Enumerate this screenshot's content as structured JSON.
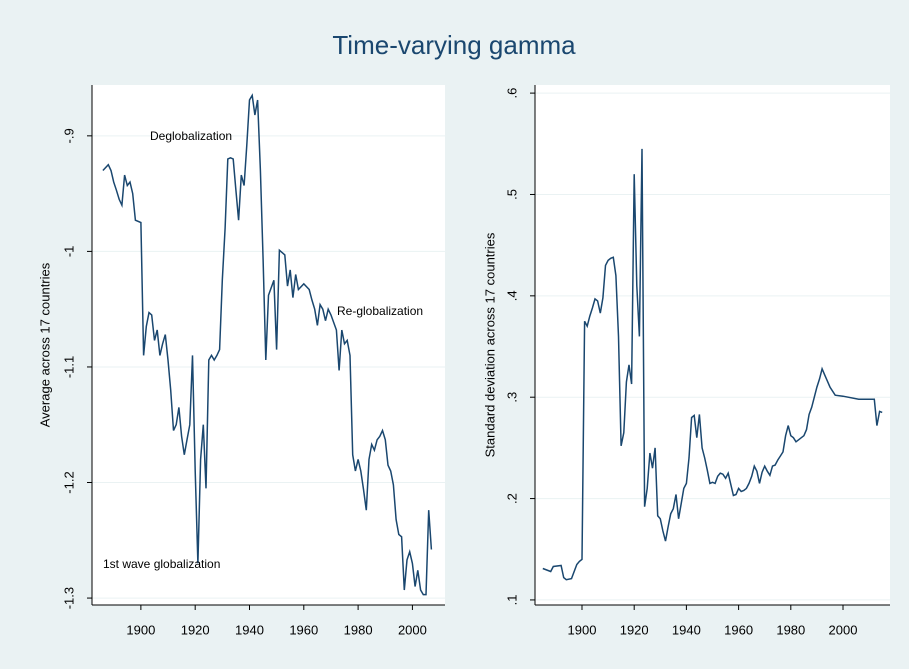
{
  "title": "Time-varying gamma",
  "chart_data": [
    {
      "type": "line",
      "y_label": "Average across 17 countries",
      "color": "#1a476f",
      "annotations": [
        "Deglobalization",
        "Re-globalization",
        "1st wave globalization"
      ],
      "xlim": [
        1882,
        2012
      ],
      "xticks": [
        1900,
        1920,
        1940,
        1960,
        1980,
        2000
      ],
      "ylim": [
        -1.306,
        -0.856
      ],
      "yticks": [
        {
          "value": -0.9,
          "label": "-.9"
        },
        -1,
        -1.1,
        -1.2,
        -1.3
      ],
      "grid": true,
      "x": [
        1886,
        1888,
        1889,
        1890,
        1891,
        1892,
        1893,
        1894,
        1895,
        1896,
        1897,
        1898,
        1900,
        1901,
        1902,
        1903,
        1904,
        1905,
        1906,
        1907,
        1908,
        1909,
        1910,
        1911,
        1912,
        1913,
        1914,
        1915,
        1916,
        1917,
        1918,
        1919,
        1920,
        1921,
        1922,
        1923,
        1924,
        1925,
        1926,
        1927,
        1928,
        1929,
        1930,
        1931,
        1932,
        1933,
        1934,
        1935,
        1936,
        1937,
        1938,
        1939,
        1940,
        1941,
        1942,
        1943,
        1944,
        1945,
        1946,
        1947,
        1949,
        1950,
        1951,
        1953,
        1954,
        1955,
        1956,
        1957,
        1958,
        1960,
        1962,
        1963,
        1964,
        1965,
        1966,
        1967,
        1968,
        1969,
        1970,
        1972,
        1973,
        1974,
        1975,
        1976,
        1977,
        1978,
        1979,
        1980,
        1981,
        1982,
        1983,
        1984,
        1985,
        1986,
        1987,
        1988,
        1989,
        1990,
        1991,
        1992,
        1993,
        1994,
        1995,
        1996,
        1997,
        1998,
        1999,
        2000,
        2001,
        2002,
        2003,
        2004,
        2005,
        2006,
        2007
      ],
      "values": [
        -0.93,
        -0.925,
        -0.93,
        -0.94,
        -0.947,
        -0.955,
        -0.96,
        -0.934,
        -0.943,
        -0.94,
        -0.95,
        -0.973,
        -0.975,
        -1.09,
        -1.065,
        -1.053,
        -1.055,
        -1.077,
        -1.068,
        -1.09,
        -1.08,
        -1.072,
        -1.094,
        -1.12,
        -1.155,
        -1.15,
        -1.135,
        -1.16,
        -1.176,
        -1.163,
        -1.15,
        -1.09,
        -1.19,
        -1.27,
        -1.18,
        -1.15,
        -1.205,
        -1.094,
        -1.09,
        -1.094,
        -1.09,
        -1.085,
        -1.025,
        -0.98,
        -0.92,
        -0.919,
        -0.92,
        -0.947,
        -0.973,
        -0.934,
        -0.943,
        -0.908,
        -0.869,
        -0.865,
        -0.882,
        -0.869,
        -0.93,
        -1.007,
        -1.094,
        -1.038,
        -1.025,
        -1.085,
        -0.999,
        -1.003,
        -1.03,
        -1.016,
        -1.04,
        -1.02,
        -1.033,
        -1.028,
        -1.033,
        -1.042,
        -1.05,
        -1.064,
        -1.046,
        -1.05,
        -1.06,
        -1.05,
        -1.055,
        -1.068,
        -1.103,
        -1.068,
        -1.08,
        -1.077,
        -1.09,
        -1.176,
        -1.19,
        -1.18,
        -1.19,
        -1.206,
        -1.224,
        -1.18,
        -1.167,
        -1.172,
        -1.163,
        -1.16,
        -1.155,
        -1.163,
        -1.185,
        -1.19,
        -1.202,
        -1.232,
        -1.245,
        -1.247,
        -1.293,
        -1.267,
        -1.26,
        -1.27,
        -1.29,
        -1.276,
        -1.293,
        -1.297,
        -1.297,
        -1.224,
        -1.258
      ]
    },
    {
      "type": "line",
      "y_label": "Standard deviation across 17 countries",
      "color": "#1a476f",
      "xlim": [
        1882,
        2018
      ],
      "xticks": [
        1900,
        1920,
        1940,
        1960,
        1980,
        2000
      ],
      "ylim": [
        0.095,
        0.608
      ],
      "yticks": [
        {
          "value": 0.1,
          "label": ".1"
        },
        {
          "value": 0.2,
          "label": ".2"
        },
        {
          "value": 0.3,
          "label": ".3"
        },
        {
          "value": 0.4,
          "label": ".4"
        },
        {
          "value": 0.5,
          "label": ".5"
        },
        {
          "value": 0.6,
          "label": ".6"
        }
      ],
      "grid": true,
      "x": [
        1885,
        1888,
        1889,
        1892,
        1893,
        1894,
        1896,
        1898,
        1899,
        1900,
        1901,
        1902,
        1903,
        1904,
        1905,
        1906,
        1907,
        1908,
        1909,
        1910,
        1911,
        1912,
        1913,
        1914,
        1915,
        1916,
        1917,
        1918,
        1919,
        1920,
        1921,
        1922,
        1923,
        1924,
        1925,
        1926,
        1927,
        1928,
        1929,
        1930,
        1931,
        1932,
        1933,
        1934,
        1935,
        1936,
        1937,
        1938,
        1939,
        1940,
        1941,
        1942,
        1943,
        1944,
        1945,
        1946,
        1947,
        1948,
        1949,
        1950,
        1951,
        1952,
        1953,
        1954,
        1955,
        1956,
        1957,
        1958,
        1959,
        1960,
        1961,
        1962,
        1963,
        1964,
        1965,
        1966,
        1967,
        1968,
        1969,
        1970,
        1971,
        1972,
        1973,
        1974,
        1975,
        1976,
        1977,
        1978,
        1979,
        1980,
        1981,
        1982,
        1983,
        1984,
        1985,
        1986,
        1987,
        1988,
        1989,
        1990,
        1991,
        1992,
        1993,
        1995,
        1997,
        2000,
        2006,
        2012,
        2013,
        2014,
        2015
      ],
      "values": [
        0.131,
        0.128,
        0.133,
        0.134,
        0.122,
        0.12,
        0.121,
        0.135,
        0.138,
        0.14,
        0.375,
        0.37,
        0.38,
        0.388,
        0.397,
        0.395,
        0.383,
        0.398,
        0.43,
        0.435,
        0.437,
        0.438,
        0.42,
        0.36,
        0.252,
        0.265,
        0.315,
        0.332,
        0.313,
        0.52,
        0.41,
        0.36,
        0.545,
        0.192,
        0.21,
        0.245,
        0.23,
        0.25,
        0.183,
        0.18,
        0.168,
        0.158,
        0.172,
        0.185,
        0.19,
        0.204,
        0.18,
        0.195,
        0.21,
        0.215,
        0.24,
        0.28,
        0.282,
        0.26,
        0.283,
        0.25,
        0.24,
        0.228,
        0.215,
        0.216,
        0.215,
        0.222,
        0.225,
        0.224,
        0.22,
        0.225,
        0.214,
        0.203,
        0.204,
        0.21,
        0.207,
        0.208,
        0.21,
        0.215,
        0.222,
        0.232,
        0.227,
        0.215,
        0.226,
        0.232,
        0.227,
        0.223,
        0.232,
        0.233,
        0.238,
        0.242,
        0.246,
        0.262,
        0.272,
        0.262,
        0.26,
        0.256,
        0.258,
        0.26,
        0.262,
        0.268,
        0.283,
        0.29,
        0.3,
        0.31,
        0.318,
        0.328,
        0.322,
        0.31,
        0.302,
        0.301,
        0.298,
        0.298,
        0.272,
        0.286,
        0.285
      ]
    }
  ]
}
